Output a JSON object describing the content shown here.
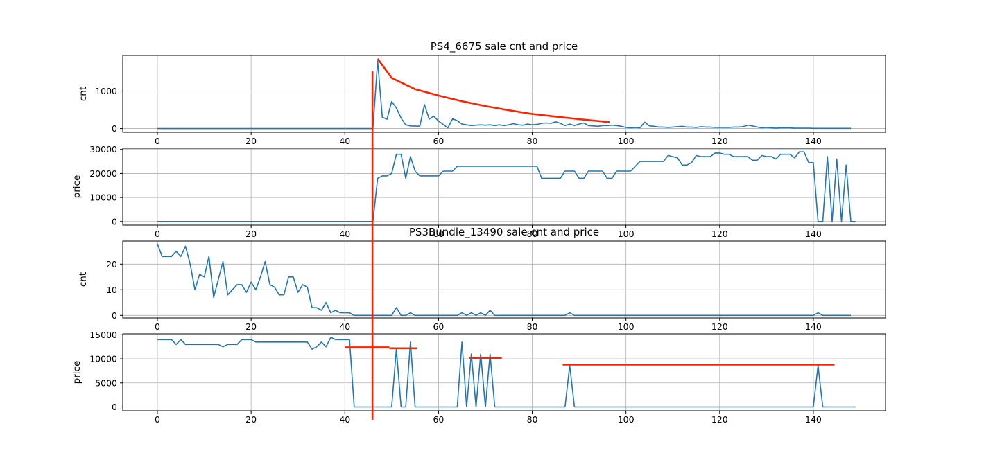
{
  "figure": {
    "title_top": "PS4_6675 sale cnt and price",
    "title_bottom": "PS3Bundle_13490 sale cnt and price"
  },
  "colors": {
    "series": "#1f77b4",
    "annotation": "#ff2200",
    "grid": "#b0b0b0"
  },
  "chart_data": [
    {
      "type": "line",
      "title": "PS4_6675 sale cnt and price",
      "xlabel": "",
      "ylabel": "cnt",
      "xlim": [
        -7.4,
        155.4
      ],
      "ylim": [
        -100,
        1950
      ],
      "xticks": [
        0,
        20,
        40,
        60,
        80,
        100,
        120,
        140
      ],
      "yticks": [
        0,
        1000
      ],
      "grid": true,
      "series": [
        {
          "values": [
            0,
            0,
            0,
            0,
            0,
            0,
            0,
            0,
            0,
            0,
            0,
            0,
            0,
            0,
            0,
            0,
            0,
            0,
            0,
            0,
            0,
            0,
            0,
            0,
            0,
            0,
            0,
            0,
            0,
            0,
            0,
            0,
            0,
            0,
            0,
            0,
            0,
            0,
            0,
            0,
            0,
            0,
            0,
            0,
            0,
            0,
            0,
            1800,
            300,
            250,
            720,
            550,
            280,
            100,
            70,
            65,
            65,
            640,
            250,
            330,
            200,
            110,
            20,
            260,
            210,
            120,
            100,
            80,
            90,
            100,
            90,
            100,
            80,
            100,
            80,
            100,
            130,
            100,
            90,
            120,
            100,
            110,
            140,
            150,
            140,
            180,
            140,
            80,
            120,
            80,
            120,
            150,
            80,
            70,
            60,
            80,
            80,
            90,
            80,
            60,
            30,
            20,
            30,
            20,
            170,
            70,
            60,
            40,
            40,
            30,
            40,
            50,
            60,
            40,
            40,
            30,
            50,
            40,
            40,
            30,
            30,
            30,
            30,
            40,
            40,
            50,
            90,
            70,
            40,
            20,
            30,
            20,
            10,
            20,
            20,
            20,
            10,
            10,
            10,
            10,
            5,
            5,
            5,
            5,
            5,
            5,
            5,
            5,
            5
          ]
        }
      ],
      "annotations": {
        "curve_x": [
          47,
          50,
          55,
          60,
          65,
          70,
          75,
          80,
          85,
          90,
          95,
          96.5
        ],
        "curve_y": [
          1860,
          1350,
          1050,
          880,
          730,
          600,
          490,
          390,
          320,
          250,
          190,
          170
        ]
      }
    },
    {
      "type": "line",
      "title": "",
      "xlabel": "",
      "ylabel": "price",
      "xlim": [
        -7.4,
        155.4
      ],
      "ylim": [
        -1500,
        30500
      ],
      "xticks": [
        0,
        20,
        40,
        60,
        80,
        100,
        120,
        140
      ],
      "yticks": [
        0,
        10000,
        20000,
        30000
      ],
      "grid": true,
      "series": [
        {
          "values": [
            0,
            0,
            0,
            0,
            0,
            0,
            0,
            0,
            0,
            0,
            0,
            0,
            0,
            0,
            0,
            0,
            0,
            0,
            0,
            0,
            0,
            0,
            0,
            0,
            0,
            0,
            0,
            0,
            0,
            0,
            0,
            0,
            0,
            0,
            0,
            0,
            0,
            0,
            0,
            0,
            0,
            0,
            0,
            0,
            0,
            0,
            0,
            18000,
            19000,
            19000,
            20000,
            28000,
            28000,
            18000,
            27000,
            21000,
            19000,
            19000,
            19000,
            19000,
            19000,
            21000,
            21000,
            21000,
            23000,
            23000,
            23000,
            23000,
            23000,
            23000,
            23000,
            23000,
            23000,
            23000,
            23000,
            23000,
            23000,
            23000,
            23000,
            23000,
            23000,
            23000,
            18000,
            18000,
            18000,
            18000,
            18000,
            21000,
            21000,
            21000,
            18000,
            18000,
            21000,
            21000,
            21000,
            21000,
            18000,
            18000,
            21000,
            21000,
            21000,
            21000,
            23000,
            25000,
            25000,
            25000,
            25000,
            25000,
            25000,
            27500,
            27000,
            26500,
            23500,
            23500,
            24500,
            27500,
            27000,
            27000,
            27000,
            28500,
            28500,
            28000,
            28000,
            27000,
            27000,
            27000,
            27000,
            25500,
            25500,
            27500,
            27000,
            27000,
            26000,
            28000,
            28000,
            28000,
            26500,
            29000,
            29000,
            24500,
            24500,
            0,
            0,
            27000,
            0,
            26000,
            0,
            23500,
            0,
            0
          ]
        }
      ]
    },
    {
      "type": "line",
      "title": "PS3Bundle_13490 sale cnt and price",
      "xlabel": "",
      "ylabel": "cnt",
      "xlim": [
        -7.4,
        155.4
      ],
      "ylim": [
        -1,
        29
      ],
      "xticks": [
        0,
        20,
        40,
        60,
        80,
        100,
        120,
        140
      ],
      "yticks": [
        0,
        10,
        20
      ],
      "grid": true,
      "series": [
        {
          "values": [
            28,
            23,
            23,
            23,
            25,
            23,
            27,
            20,
            10,
            16,
            15,
            23,
            7,
            14,
            21,
            8,
            10,
            12,
            12,
            9,
            13,
            10,
            15,
            21,
            12,
            11,
            8,
            8,
            15,
            15,
            9,
            12,
            11,
            3,
            3,
            2,
            5,
            1,
            2,
            1,
            1,
            1,
            0,
            0,
            0,
            0,
            0,
            0,
            0,
            0,
            0,
            3,
            0,
            0,
            1,
            0,
            0,
            0,
            0,
            0,
            0,
            0,
            0,
            0,
            0,
            1,
            0,
            1,
            0,
            1,
            0,
            2,
            0,
            0,
            0,
            0,
            0,
            0,
            0,
            0,
            0,
            0,
            0,
            0,
            0,
            0,
            0,
            0,
            1,
            0,
            0,
            0,
            0,
            0,
            0,
            0,
            0,
            0,
            0,
            0,
            0,
            0,
            0,
            0,
            0,
            0,
            0,
            0,
            0,
            0,
            0,
            0,
            0,
            0,
            0,
            0,
            0,
            0,
            0,
            0,
            0,
            0,
            0,
            0,
            0,
            0,
            0,
            0,
            0,
            0,
            0,
            0,
            0,
            0,
            0,
            0,
            0,
            0,
            0,
            0,
            0,
            1,
            0,
            0,
            0,
            0,
            0,
            0,
            0
          ]
        }
      ]
    },
    {
      "type": "line",
      "title": "",
      "xlabel": "",
      "ylabel": "price",
      "xlim": [
        -7.4,
        155.4
      ],
      "ylim": [
        -800,
        15200
      ],
      "xticks": [
        0,
        20,
        40,
        60,
        80,
        100,
        120,
        140
      ],
      "yticks": [
        0,
        5000,
        10000,
        15000
      ],
      "grid": true,
      "series": [
        {
          "values": [
            14000,
            14000,
            14000,
            14000,
            13000,
            14000,
            13000,
            13000,
            13000,
            13000,
            13000,
            13000,
            13000,
            13000,
            12500,
            13000,
            13000,
            13000,
            14000,
            14000,
            14000,
            13500,
            13500,
            13500,
            13500,
            13500,
            13500,
            13500,
            13500,
            13500,
            13500,
            13500,
            13500,
            12000,
            12500,
            13500,
            12500,
            14500,
            14000,
            14000,
            14000,
            14000,
            0,
            0,
            0,
            0,
            0,
            0,
            0,
            0,
            0,
            12000,
            0,
            0,
            13500,
            0,
            0,
            0,
            0,
            0,
            0,
            0,
            0,
            0,
            0,
            13500,
            0,
            11000,
            0,
            11000,
            0,
            11000,
            0,
            0,
            0,
            0,
            0,
            0,
            0,
            0,
            0,
            0,
            0,
            0,
            0,
            0,
            0,
            0,
            8600,
            0,
            0,
            0,
            0,
            0,
            0,
            0,
            0,
            0,
            0,
            0,
            0,
            0,
            0,
            0,
            0,
            0,
            0,
            0,
            0,
            0,
            0,
            0,
            0,
            0,
            0,
            0,
            0,
            0,
            0,
            0,
            0,
            0,
            0,
            0,
            0,
            0,
            0,
            0,
            0,
            0,
            0,
            0,
            0,
            0,
            0,
            0,
            0,
            0,
            0,
            0,
            0,
            8600,
            0,
            0,
            0,
            0,
            0,
            0,
            0,
            0
          ]
        }
      ],
      "annotations": {
        "hlines": [
          {
            "x": [
              40,
              49.5
            ],
            "y": 12400
          },
          {
            "x": [
              49.5,
              55.5
            ],
            "y": 12200
          },
          {
            "x": [
              66.5,
              73.5
            ],
            "y": 10200
          },
          {
            "x": [
              86.5,
              144.5
            ],
            "y": 8800
          }
        ]
      }
    }
  ],
  "vertical_marker": {
    "x": 45.9
  }
}
